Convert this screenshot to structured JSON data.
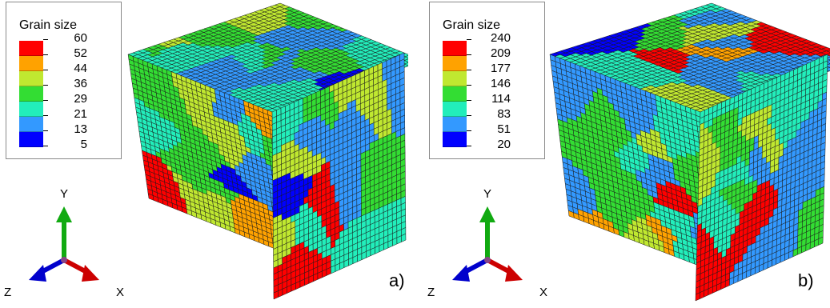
{
  "panels": [
    {
      "id": "a",
      "label": "a)",
      "legend": {
        "title": "Grain size",
        "values": [
          "60",
          "52",
          "44",
          "36",
          "29",
          "21",
          "13",
          "5"
        ]
      },
      "axes": {
        "x": "X",
        "y": "Y",
        "z": "Z"
      }
    },
    {
      "id": "b",
      "label": "b)",
      "legend": {
        "title": "Grain size",
        "values": [
          "240",
          "209",
          "177",
          "146",
          "114",
          "83",
          "51",
          "20"
        ]
      },
      "axes": {
        "x": "X",
        "y": "Y",
        "z": "Z"
      }
    }
  ],
  "colors": {
    "scale": [
      "#ff0000",
      "#ffa200",
      "#c0e830",
      "#33dd33",
      "#22eebb",
      "#3399ff",
      "#0000ff"
    ],
    "axis_x": "#cc0000",
    "axis_y": "#11aa11",
    "axis_z": "#0000cc",
    "mesh_line": "#1a1a1a"
  }
}
